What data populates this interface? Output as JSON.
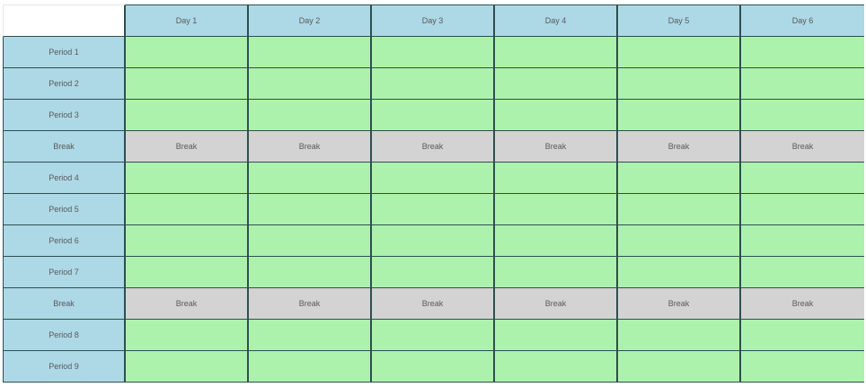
{
  "timetable": {
    "days": [
      "Day 1",
      "Day 2",
      "Day 3",
      "Day 4",
      "Day 5",
      "Day 6"
    ],
    "rows": [
      {
        "label": "Period 1",
        "type": "period"
      },
      {
        "label": "Period 2",
        "type": "period"
      },
      {
        "label": "Period 3",
        "type": "period"
      },
      {
        "label": "Break",
        "type": "break"
      },
      {
        "label": "Period 4",
        "type": "period"
      },
      {
        "label": "Period 5",
        "type": "period"
      },
      {
        "label": "Period 6",
        "type": "period"
      },
      {
        "label": "Period 7",
        "type": "period"
      },
      {
        "label": "Break",
        "type": "break"
      },
      {
        "label": "Period 8",
        "type": "period"
      },
      {
        "label": "Period 9",
        "type": "period"
      }
    ],
    "break_cell_label": "Break",
    "colors": {
      "header": "#add8e6",
      "period_cell": "#acf2ac",
      "break_cell": "#d3d3d3",
      "border": "#2f4f4f"
    }
  }
}
